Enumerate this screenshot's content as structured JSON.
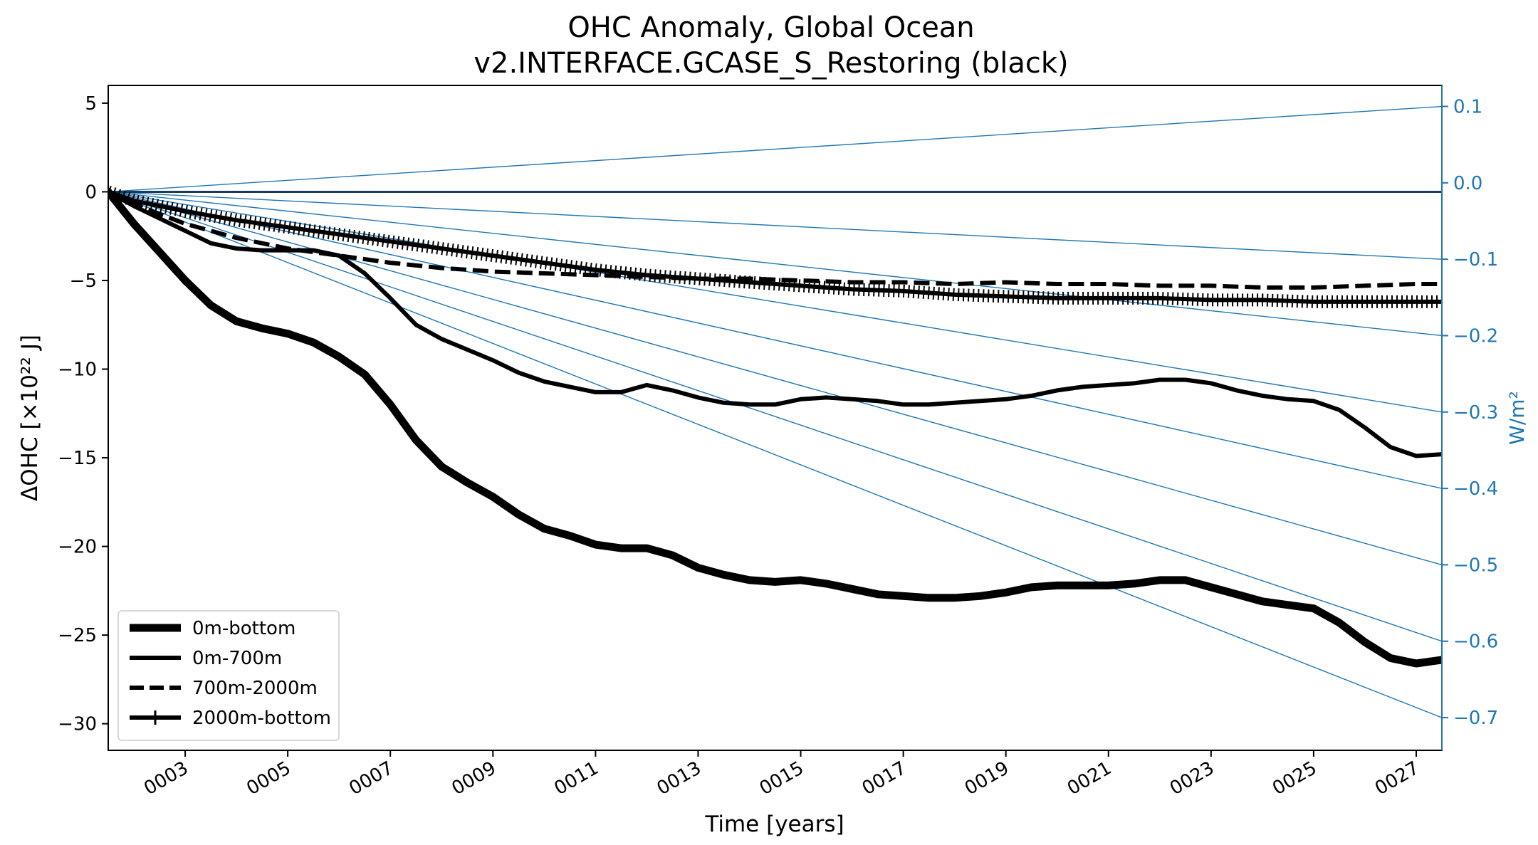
{
  "chart_data": {
    "type": "line",
    "title": "OHC Anomaly, Global Ocean",
    "subtitle": "v2.INTERFACE.GCASE_S_Restoring (black)",
    "xlabel": "Time [years]",
    "ylabel": "ΔOHC [×10²² J]",
    "ylabel_right": "W/m²",
    "xlim": [
      1.5,
      27.5
    ],
    "ylim": [
      -31.5,
      6
    ],
    "ylim_right": [
      -0.7428,
      0.1275
    ],
    "x_ticks": [
      3,
      5,
      7,
      9,
      11,
      13,
      15,
      17,
      19,
      21,
      23,
      25,
      27
    ],
    "x_tick_labels": [
      "0003",
      "0005",
      "0007",
      "0009",
      "0011",
      "0013",
      "0015",
      "0017",
      "0019",
      "0021",
      "0023",
      "0025",
      "0027"
    ],
    "y_ticks": [
      5,
      0,
      -5,
      -10,
      -15,
      -20,
      -25,
      -30
    ],
    "y_tick_labels": [
      "5",
      "0",
      "−5",
      "−10",
      "−15",
      "−20",
      "−25",
      "−30"
    ],
    "y_ticks_right": [
      0.1,
      0.0,
      -0.1,
      -0.2,
      -0.3,
      -0.4,
      -0.5,
      -0.6,
      -0.7
    ],
    "y_tick_labels_right": [
      "0.1",
      "0.0",
      "−0.1",
      "−0.2",
      "−0.3",
      "−0.4",
      "−0.5",
      "−0.6",
      "−0.7"
    ],
    "reference_rates_wm2": [
      0.1,
      -0.1,
      -0.2,
      -0.3,
      -0.4,
      -0.5,
      -0.6,
      -0.7
    ],
    "legend_position": "lower-left",
    "colors": {
      "series": "#000000",
      "right_axis": "#1f77b4",
      "zero_line": "#1b3a5c"
    },
    "series": [
      {
        "name": "0m-bottom",
        "style": "thick-solid",
        "x": [
          1.5,
          2,
          2.5,
          3,
          3.5,
          4,
          4.5,
          5,
          5.5,
          6,
          6.5,
          7,
          7.5,
          8,
          8.5,
          9,
          9.5,
          10,
          10.5,
          11,
          11.5,
          12,
          12.5,
          13,
          13.5,
          14,
          14.5,
          15,
          15.5,
          16,
          16.5,
          17,
          17.5,
          18,
          18.5,
          19,
          19.5,
          20,
          20.5,
          21,
          21.5,
          22,
          22.5,
          23,
          23.5,
          24,
          24.5,
          25,
          25.5,
          26,
          26.5,
          27,
          27.5
        ],
        "values": [
          0,
          -1.8,
          -3.4,
          -5.0,
          -6.4,
          -7.3,
          -7.7,
          -8.0,
          -8.5,
          -9.3,
          -10.3,
          -12.0,
          -14.0,
          -15.5,
          -16.4,
          -17.2,
          -18.2,
          -19.0,
          -19.4,
          -19.9,
          -20.1,
          -20.1,
          -20.5,
          -21.2,
          -21.6,
          -21.9,
          -22.0,
          -21.9,
          -22.1,
          -22.4,
          -22.7,
          -22.8,
          -22.9,
          -22.9,
          -22.8,
          -22.6,
          -22.3,
          -22.2,
          -22.2,
          -22.2,
          -22.1,
          -21.9,
          -21.9,
          -22.3,
          -22.7,
          -23.1,
          -23.3,
          -23.5,
          -24.3,
          -25.4,
          -26.3,
          -26.6,
          -26.4
        ]
      },
      {
        "name": "0m-700m",
        "style": "solid",
        "x": [
          1.5,
          2,
          2.5,
          3,
          3.5,
          4,
          4.5,
          5,
          5.5,
          6,
          6.5,
          7,
          7.5,
          8,
          8.5,
          9,
          9.5,
          10,
          10.5,
          11,
          11.5,
          12,
          12.5,
          13,
          13.5,
          14,
          14.5,
          15,
          15.5,
          16,
          16.5,
          17,
          17.5,
          18,
          18.5,
          19,
          19.5,
          20,
          20.5,
          21,
          21.5,
          22,
          22.5,
          23,
          23.5,
          24,
          24.5,
          25,
          25.5,
          26,
          26.5,
          27,
          27.5
        ],
        "values": [
          0,
          -0.8,
          -1.5,
          -2.2,
          -2.9,
          -3.2,
          -3.3,
          -3.3,
          -3.3,
          -3.6,
          -4.6,
          -6.0,
          -7.5,
          -8.3,
          -8.9,
          -9.5,
          -10.2,
          -10.7,
          -11.0,
          -11.3,
          -11.3,
          -10.9,
          -11.2,
          -11.6,
          -11.9,
          -12.0,
          -12.0,
          -11.7,
          -11.6,
          -11.7,
          -11.8,
          -12.0,
          -12.0,
          -11.9,
          -11.8,
          -11.7,
          -11.5,
          -11.2,
          -11.0,
          -10.9,
          -10.8,
          -10.6,
          -10.6,
          -10.8,
          -11.2,
          -11.5,
          -11.7,
          -11.8,
          -12.3,
          -13.3,
          -14.4,
          -14.9,
          -14.8
        ]
      },
      {
        "name": "700m-2000m",
        "style": "dashed",
        "x": [
          1.5,
          2,
          3,
          4,
          5,
          6,
          7,
          8,
          9,
          10,
          11,
          12,
          13,
          14,
          15,
          16,
          17,
          18,
          19,
          20,
          21,
          22,
          23,
          24,
          25,
          26,
          27,
          27.5
        ],
        "values": [
          0,
          -0.7,
          -1.8,
          -2.6,
          -3.2,
          -3.6,
          -4.0,
          -4.3,
          -4.5,
          -4.6,
          -4.7,
          -4.8,
          -4.9,
          -4.9,
          -5.0,
          -5.1,
          -5.1,
          -5.2,
          -5.1,
          -5.2,
          -5.2,
          -5.3,
          -5.3,
          -5.4,
          -5.4,
          -5.3,
          -5.2,
          -5.2
        ]
      },
      {
        "name": "2000m-bottom",
        "style": "plus-marker",
        "x": [
          1.5,
          2,
          3,
          4,
          5,
          6,
          7,
          8,
          9,
          10,
          11,
          12,
          13,
          14,
          15,
          16,
          17,
          18,
          19,
          20,
          21,
          22,
          23,
          24,
          25,
          26,
          27,
          27.5
        ],
        "values": [
          0,
          -0.5,
          -1.1,
          -1.6,
          -2.0,
          -2.4,
          -2.8,
          -3.2,
          -3.6,
          -4.0,
          -4.4,
          -4.7,
          -4.9,
          -5.1,
          -5.3,
          -5.5,
          -5.6,
          -5.8,
          -5.9,
          -6.0,
          -6.0,
          -6.0,
          -6.1,
          -6.1,
          -6.2,
          -6.2,
          -6.2,
          -6.2
        ]
      }
    ]
  }
}
